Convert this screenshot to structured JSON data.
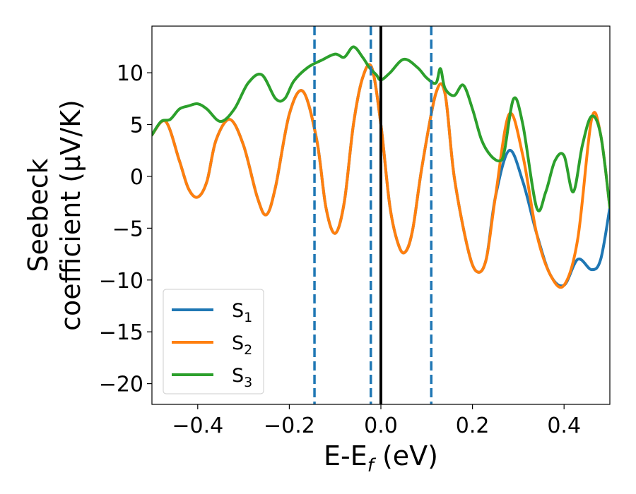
{
  "chart_data": {
    "type": "line",
    "title": "",
    "xlabel": {
      "main": "E-E",
      "sub": "f",
      "unit": " (eV)"
    },
    "ylabel": {
      "line1": "Seebeck",
      "line2": "coefficient  (μV/K)"
    },
    "xlim": [
      -0.5,
      0.5
    ],
    "ylim": [
      -22,
      14.5
    ],
    "xticks": [
      -0.4,
      -0.2,
      0.0,
      0.2,
      0.4
    ],
    "xtick_labels": [
      "−0.4",
      "−0.2",
      "0.0",
      "0.2",
      "0.4"
    ],
    "yticks": [
      -20,
      -15,
      -10,
      -5,
      0,
      5,
      10
    ],
    "ytick_labels": [
      "−20",
      "−15",
      "−10",
      "−5",
      "0",
      "5",
      "10"
    ],
    "grid": false,
    "legend_position": "lower-left",
    "vlines": [
      {
        "x": -0.145,
        "style": "dashed",
        "color": "#1f77b4"
      },
      {
        "x": -0.022,
        "style": "dashed",
        "color": "#1f77b4"
      },
      {
        "x": 0.0,
        "style": "solid",
        "color": "#000000"
      },
      {
        "x": 0.11,
        "style": "dashed",
        "color": "#1f77b4"
      }
    ],
    "series": [
      {
        "name": "S",
        "sub": "1",
        "color": "#1f77b4",
        "x": [
          -0.5,
          -0.47,
          -0.44,
          -0.42,
          -0.4,
          -0.38,
          -0.36,
          -0.33,
          -0.3,
          -0.27,
          -0.25,
          -0.23,
          -0.2,
          -0.17,
          -0.14,
          -0.12,
          -0.1,
          -0.08,
          -0.06,
          -0.04,
          -0.02,
          0.0,
          0.02,
          0.04,
          0.055,
          0.07,
          0.09,
          0.12,
          0.14,
          0.16,
          0.19,
          0.21,
          0.23,
          0.25,
          0.28,
          0.31,
          0.34,
          0.37,
          0.4,
          0.43,
          0.46,
          0.48,
          0.5
        ],
        "y": [
          4.0,
          5.3,
          1.5,
          -1.2,
          -2.0,
          -0.5,
          3.5,
          5.5,
          3.0,
          -2.0,
          -3.7,
          -1.0,
          6.0,
          8.2,
          3.5,
          -3.0,
          -5.5,
          -2.5,
          5.0,
          9.5,
          10.5,
          5.0,
          -3.0,
          -6.8,
          -7.2,
          -5.0,
          1.0,
          8.0,
          8.0,
          0.0,
          -7.0,
          -9.2,
          -8.0,
          -2.0,
          2.5,
          -0.5,
          -5.5,
          -9.5,
          -10.5,
          -8.0,
          -9.0,
          -8.0,
          -3.0
        ]
      },
      {
        "name": "S",
        "sub": "2",
        "color": "#ff7f0e",
        "x": [
          -0.5,
          -0.47,
          -0.44,
          -0.42,
          -0.4,
          -0.38,
          -0.36,
          -0.33,
          -0.3,
          -0.27,
          -0.25,
          -0.23,
          -0.2,
          -0.17,
          -0.14,
          -0.12,
          -0.1,
          -0.08,
          -0.06,
          -0.04,
          -0.02,
          0.0,
          0.02,
          0.04,
          0.055,
          0.07,
          0.09,
          0.12,
          0.14,
          0.16,
          0.19,
          0.21,
          0.23,
          0.25,
          0.28,
          0.31,
          0.34,
          0.37,
          0.4,
          0.43,
          0.46,
          0.48,
          0.5
        ],
        "y": [
          4.0,
          5.3,
          1.5,
          -1.2,
          -2.0,
          -0.5,
          3.5,
          5.5,
          3.0,
          -2.0,
          -3.7,
          -1.0,
          6.0,
          8.2,
          3.5,
          -3.0,
          -5.5,
          -2.5,
          5.0,
          9.5,
          10.5,
          5.0,
          -3.0,
          -6.8,
          -7.2,
          -5.0,
          1.0,
          8.0,
          8.0,
          0.0,
          -7.0,
          -9.2,
          -8.0,
          -2.0,
          6.0,
          2.0,
          -5.5,
          -9.5,
          -10.5,
          -6.0,
          5.5,
          4.0,
          -3.0
        ]
      },
      {
        "name": "S",
        "sub": "3",
        "color": "#2ca02c",
        "x": [
          -0.5,
          -0.48,
          -0.46,
          -0.44,
          -0.42,
          -0.4,
          -0.38,
          -0.35,
          -0.32,
          -0.29,
          -0.26,
          -0.23,
          -0.21,
          -0.19,
          -0.16,
          -0.13,
          -0.1,
          -0.08,
          -0.06,
          -0.04,
          -0.025,
          -0.01,
          0.0,
          0.02,
          0.05,
          0.08,
          0.1,
          0.12,
          0.13,
          0.14,
          0.16,
          0.18,
          0.2,
          0.22,
          0.24,
          0.26,
          0.27,
          0.29,
          0.31,
          0.34,
          0.36,
          0.38,
          0.4,
          0.42,
          0.44,
          0.46,
          0.48,
          0.5
        ],
        "y": [
          4.0,
          5.3,
          5.5,
          6.5,
          6.8,
          7.0,
          6.5,
          5.3,
          6.5,
          9.0,
          9.8,
          7.5,
          7.5,
          9.2,
          10.5,
          11.2,
          11.8,
          11.5,
          12.5,
          11.5,
          10.5,
          9.8,
          9.3,
          10.0,
          11.3,
          10.5,
          9.5,
          9.0,
          10.4,
          8.5,
          7.8,
          8.8,
          6.5,
          3.5,
          2.0,
          1.5,
          2.5,
          7.5,
          5.0,
          -3.0,
          -1.5,
          1.5,
          2.0,
          -1.5,
          3.0,
          5.8,
          4.0,
          -3.0
        ]
      }
    ]
  }
}
